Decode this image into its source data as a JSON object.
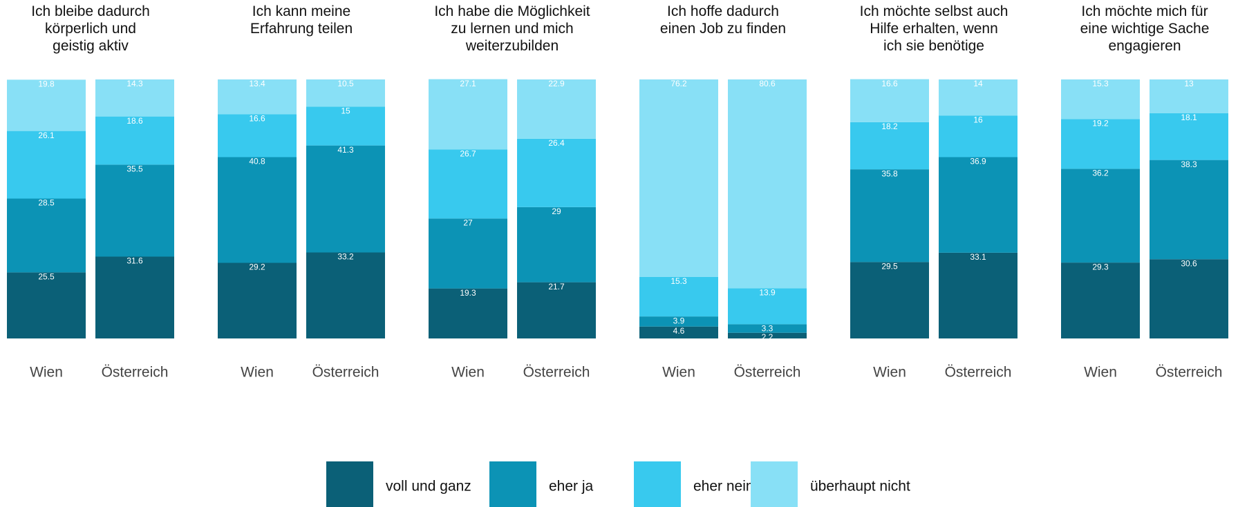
{
  "chart_data": {
    "type": "bar",
    "stacked": true,
    "facets": [
      "Ich bleibe dadurch\nkörperlich und\ngeistig aktiv",
      "Ich kann meine\nErfahrung teilen",
      "Ich habe die Möglichkeit\nzu lernen und mich\nweiterzubilden",
      "Ich hoffe dadurch\neinen Job zu finden",
      "Ich möchte selbst auch\nHilfe erhalten, wenn\nich sie benötige",
      "Ich möchte mich für\neine wichtige Sache\nengagieren"
    ],
    "categories": [
      "Wien",
      "Österreich",
      "Wien",
      "Österreich",
      "Wien",
      "Österreich",
      "Wien",
      "Österreich",
      "Wien",
      "Österreich",
      "Wien",
      "Österreich"
    ],
    "ylim": [
      0,
      100
    ],
    "series": [
      {
        "name": "voll und ganz",
        "color": "#0b6077",
        "values": [
          25.5,
          31.6,
          29.2,
          33.2,
          19.3,
          21.7,
          4.6,
          2.2,
          29.5,
          33.1,
          29.3,
          30.6
        ]
      },
      {
        "name": "eher ja",
        "color": "#0c93b5",
        "values": [
          28.5,
          35.5,
          40.8,
          41.3,
          27,
          29,
          3.9,
          3.3,
          35.8,
          36.9,
          36.2,
          38.3
        ]
      },
      {
        "name": "eher nein",
        "color": "#38c9ee",
        "values": [
          26.1,
          18.6,
          16.6,
          15,
          26.7,
          26.4,
          15.3,
          13.9,
          18.2,
          16,
          19.2,
          18.1
        ]
      },
      {
        "name": "überhaupt nicht",
        "color": "#88e0f6",
        "values": [
          19.8,
          14.3,
          13.4,
          10.5,
          27.1,
          22.9,
          76.2,
          80.6,
          16.6,
          14,
          15.3,
          13
        ]
      }
    ]
  }
}
